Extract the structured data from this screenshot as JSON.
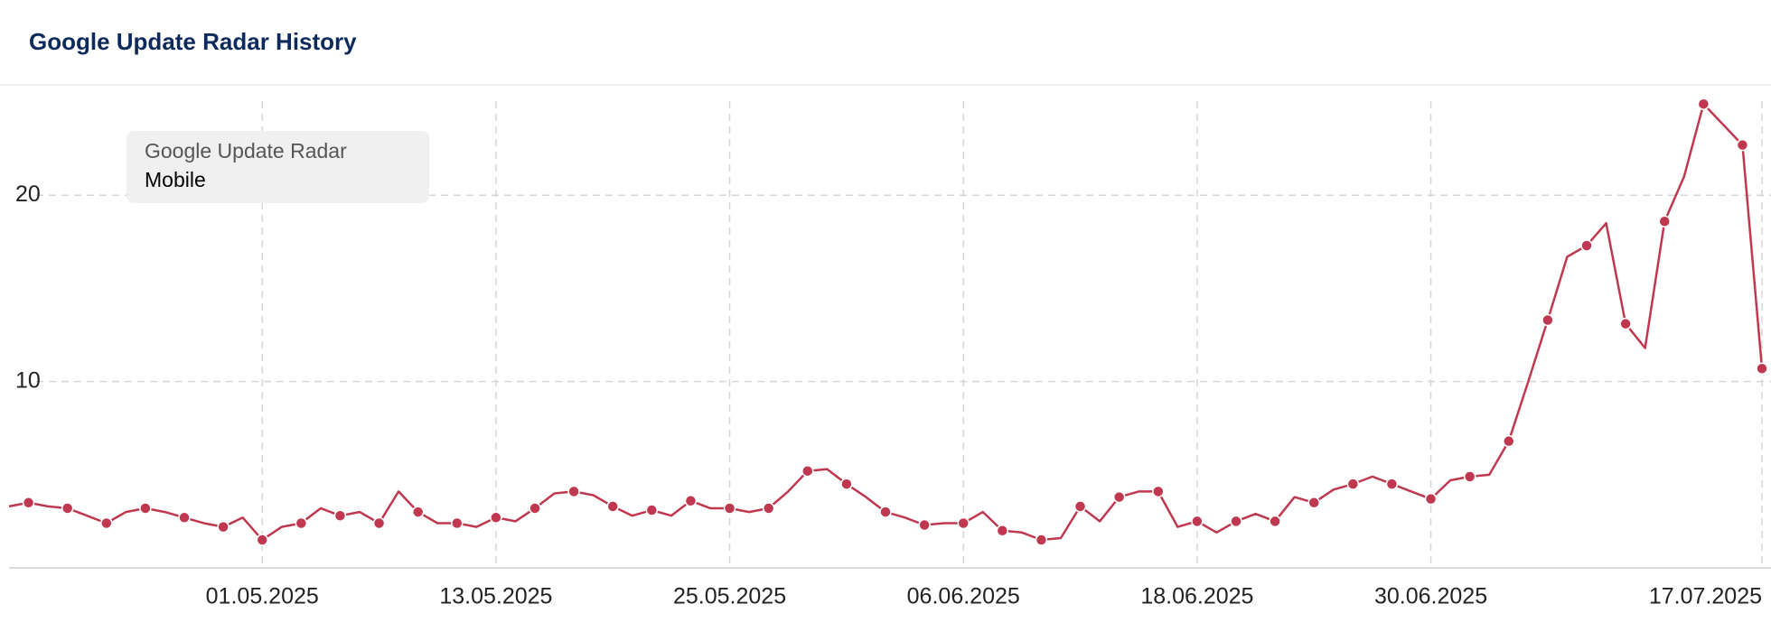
{
  "chart_data": {
    "type": "line",
    "title": "Google Update Radar History",
    "legend_title": "Google Update Radar",
    "x": [
      "18.04.2025",
      "19.04.2025",
      "20.04.2025",
      "21.04.2025",
      "22.04.2025",
      "23.04.2025",
      "24.04.2025",
      "25.04.2025",
      "26.04.2025",
      "27.04.2025",
      "28.04.2025",
      "29.04.2025",
      "30.04.2025",
      "01.05.2025",
      "02.05.2025",
      "03.05.2025",
      "04.05.2025",
      "05.05.2025",
      "06.05.2025",
      "07.05.2025",
      "08.05.2025",
      "09.05.2025",
      "10.05.2025",
      "11.05.2025",
      "12.05.2025",
      "13.05.2025",
      "14.05.2025",
      "15.05.2025",
      "16.05.2025",
      "17.05.2025",
      "18.05.2025",
      "19.05.2025",
      "20.05.2025",
      "21.05.2025",
      "22.05.2025",
      "23.05.2025",
      "24.05.2025",
      "25.05.2025",
      "26.05.2025",
      "27.05.2025",
      "28.05.2025",
      "29.05.2025",
      "30.05.2025",
      "31.05.2025",
      "01.06.2025",
      "02.06.2025",
      "03.06.2025",
      "04.06.2025",
      "05.06.2025",
      "06.06.2025",
      "07.06.2025",
      "08.06.2025",
      "09.06.2025",
      "10.06.2025",
      "11.06.2025",
      "12.06.2025",
      "13.06.2025",
      "14.06.2025",
      "15.06.2025",
      "16.06.2025",
      "17.06.2025",
      "18.06.2025",
      "19.06.2025",
      "20.06.2025",
      "21.06.2025",
      "22.06.2025",
      "23.06.2025",
      "24.06.2025",
      "25.06.2025",
      "26.06.2025",
      "27.06.2025",
      "28.06.2025",
      "29.06.2025",
      "30.06.2025",
      "01.07.2025",
      "02.07.2025",
      "03.07.2025",
      "04.07.2025",
      "05.07.2025",
      "06.07.2025",
      "07.07.2025",
      "08.07.2025",
      "09.07.2025",
      "10.07.2025",
      "11.07.2025",
      "12.07.2025",
      "13.07.2025",
      "14.07.2025",
      "15.07.2025",
      "16.07.2025",
      "17.07.2025"
    ],
    "series": [
      {
        "name": "Mobile",
        "color": "#c0384f",
        "values": [
          3.3,
          3.5,
          3.3,
          3.2,
          2.8,
          2.4,
          3.0,
          3.2,
          3.0,
          2.7,
          2.4,
          2.2,
          2.7,
          1.5,
          2.2,
          2.4,
          3.2,
          2.8,
          3.0,
          2.4,
          4.1,
          3.0,
          2.4,
          2.4,
          2.2,
          2.7,
          2.5,
          3.2,
          4.0,
          4.1,
          3.9,
          3.3,
          2.8,
          3.1,
          2.8,
          3.6,
          3.2,
          3.2,
          3.0,
          3.2,
          4.1,
          5.2,
          5.3,
          4.5,
          3.8,
          3.0,
          2.7,
          2.3,
          2.4,
          2.4,
          3.0,
          2.0,
          1.9,
          1.5,
          1.6,
          3.3,
          2.5,
          3.8,
          4.1,
          4.1,
          2.2,
          2.5,
          1.9,
          2.5,
          2.9,
          2.5,
          3.8,
          3.5,
          4.2,
          4.5,
          4.9,
          4.5,
          4.1,
          3.7,
          4.7,
          4.9,
          5.0,
          6.8,
          10.0,
          13.3,
          16.7,
          17.3,
          18.5,
          13.1,
          11.8,
          18.6,
          21.0,
          24.9,
          23.8,
          22.7,
          10.7
        ]
      }
    ],
    "xticks": [
      "01.05.2025",
      "13.05.2025",
      "25.05.2025",
      "06.06.2025",
      "18.06.2025",
      "30.06.2025",
      "17.07.2025"
    ],
    "ylim": [
      0,
      25.2
    ],
    "yticks": [
      10,
      20
    ],
    "grid": true
  }
}
